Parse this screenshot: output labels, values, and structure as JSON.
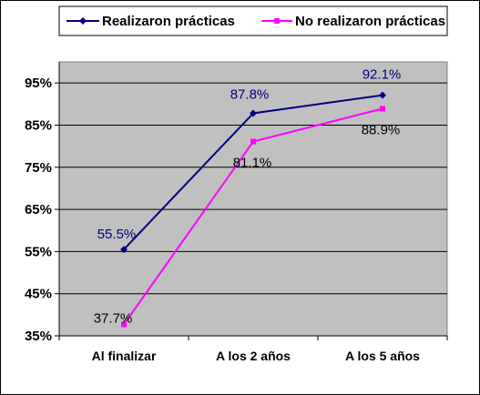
{
  "chart_data": {
    "type": "line",
    "categories": [
      "Al finalizar",
      "A los 2 años",
      "A los 5 años"
    ],
    "series": [
      {
        "name": "Realizaron prácticas",
        "values": [
          55.5,
          87.8,
          92.1
        ],
        "labels": [
          "55.5%",
          "87.8%",
          "92.1%"
        ],
        "color": "#000080",
        "label_color": "#000080",
        "marker": "diamond"
      },
      {
        "name": "No realizaron prácticas",
        "values": [
          37.7,
          81.1,
          88.9
        ],
        "labels": [
          "37.7%",
          "81.1%",
          "88.9%"
        ],
        "color": "#FF00FF",
        "label_color": "#000000",
        "marker": "square"
      }
    ],
    "y_ticks": [
      35,
      45,
      55,
      65,
      75,
      85,
      95
    ],
    "y_tick_labels": [
      "35%",
      "45%",
      "55%",
      "65%",
      "75%",
      "85%",
      "95%"
    ],
    "ylim": [
      35,
      100
    ],
    "grid": true,
    "plot_background": "#C0C0C0",
    "legend_position": "top"
  }
}
